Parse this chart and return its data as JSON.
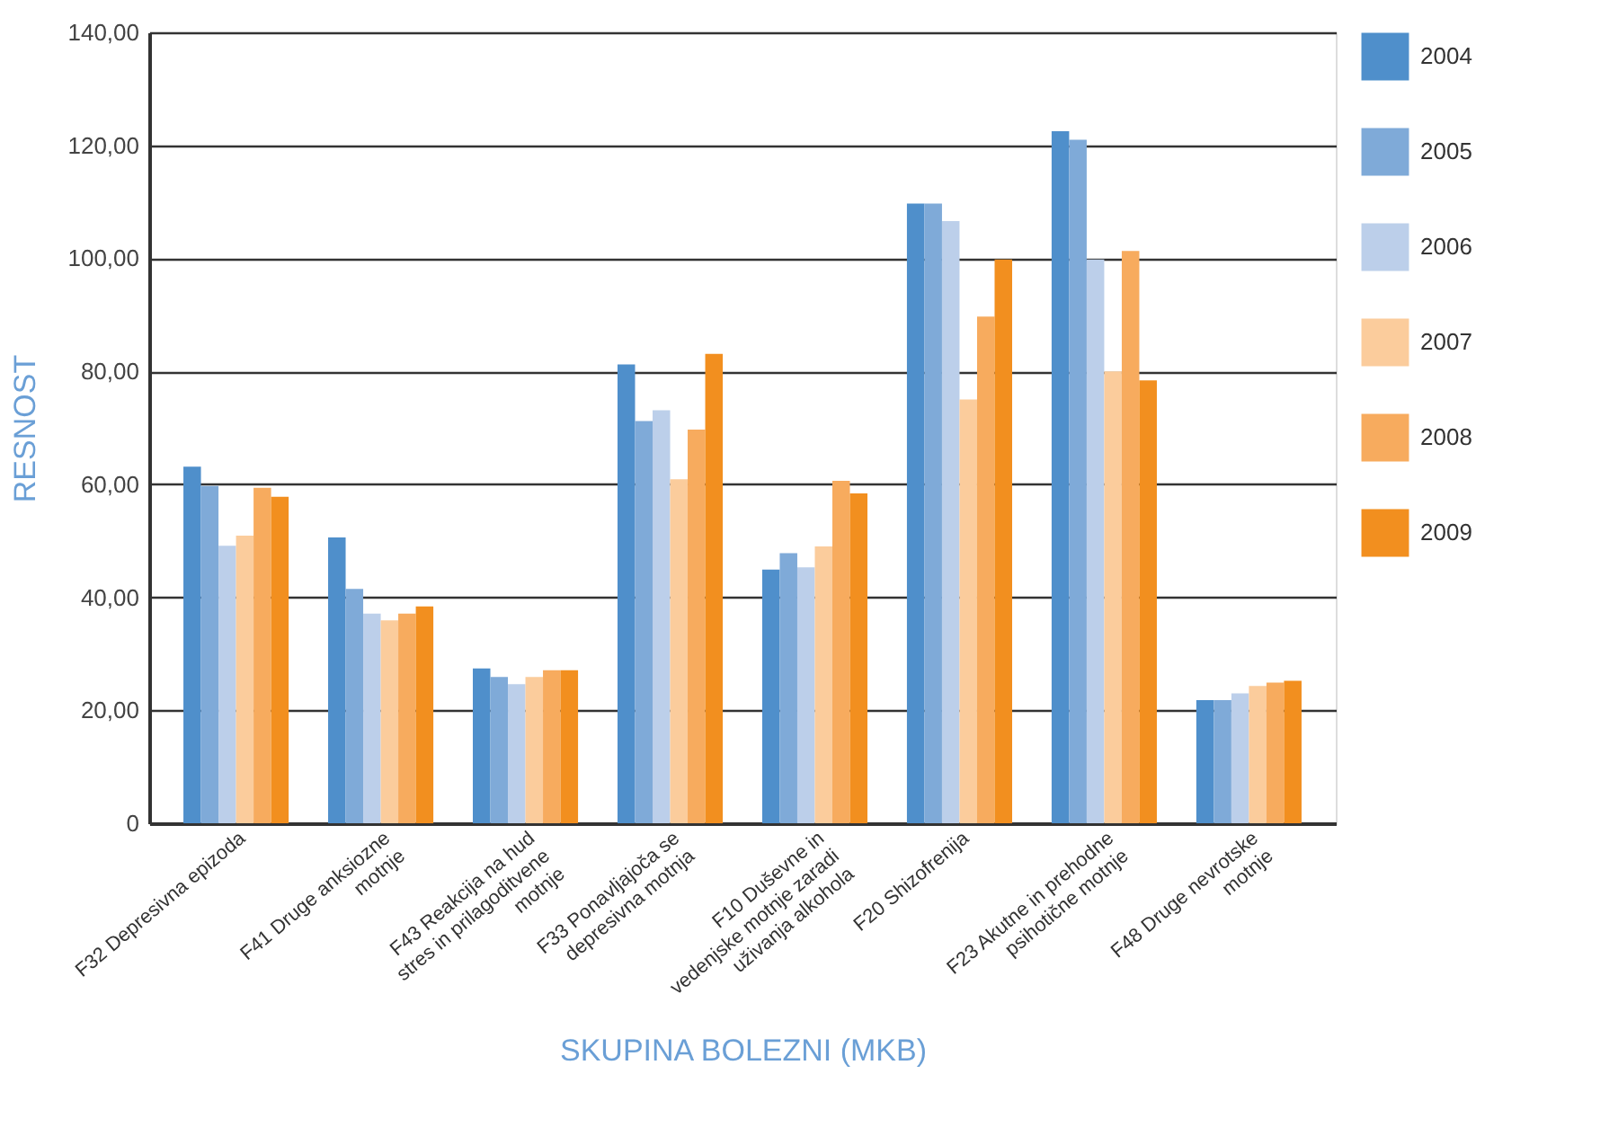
{
  "chart_data": {
    "type": "bar",
    "xlabel": "SKUPINA BOLEZNI (MKB)",
    "ylabel": "RESNOST",
    "categories": [
      "F32 Depresivna epizoda",
      "F41 Druge anksiozne motnje",
      "F43 Reakcija na hud stres in prilagoditvene motnje",
      "F33 Ponavljajoča se depresivna motnja",
      "F10 Duševne in vedenjske motnje zaradi uživanja alkohola",
      "F20 Shizofrenija",
      "F23 Akutne in prehodne psihotične motnje",
      "F48 Druge nevrotske motnje"
    ],
    "series": [
      {
        "name": "2004",
        "color": "#4f8fcb",
        "values": [
          63.1,
          50.6,
          27.4,
          81.2,
          44.9,
          109.7,
          122.5,
          21.8
        ]
      },
      {
        "name": "2005",
        "color": "#7faad8",
        "values": [
          59.7,
          41.5,
          25.9,
          71.2,
          47.8,
          109.7,
          121.0,
          21.8
        ]
      },
      {
        "name": "2006",
        "color": "#bccfea",
        "values": [
          49.1,
          37.1,
          24.6,
          73.1,
          45.3,
          106.6,
          99.8,
          23.0
        ]
      },
      {
        "name": "2007",
        "color": "#fbcc9c",
        "values": [
          50.9,
          35.9,
          25.9,
          60.9,
          49.0,
          75.0,
          80.0,
          24.3
        ]
      },
      {
        "name": "2008",
        "color": "#f7ab5e",
        "values": [
          59.4,
          37.1,
          27.1,
          69.7,
          60.6,
          89.7,
          101.3,
          24.9
        ]
      },
      {
        "name": "2009",
        "color": "#f28f1f",
        "values": [
          57.8,
          38.4,
          27.1,
          83.1,
          58.4,
          99.8,
          78.4,
          25.2
        ]
      }
    ],
    "ylim": [
      0,
      140
    ],
    "yticks": [
      0,
      {
        "value": 20,
        "label": "20,00"
      },
      {
        "value": 40,
        "label": "40,00"
      },
      {
        "value": 60,
        "label": "60,00"
      },
      {
        "value": 80,
        "label": "80,00"
      },
      {
        "value": 100,
        "label": "100,00"
      },
      {
        "value": 120,
        "label": "120,00"
      },
      {
        "value": 140,
        "label": "140,00"
      }
    ],
    "grid": "y",
    "legend": "right"
  }
}
